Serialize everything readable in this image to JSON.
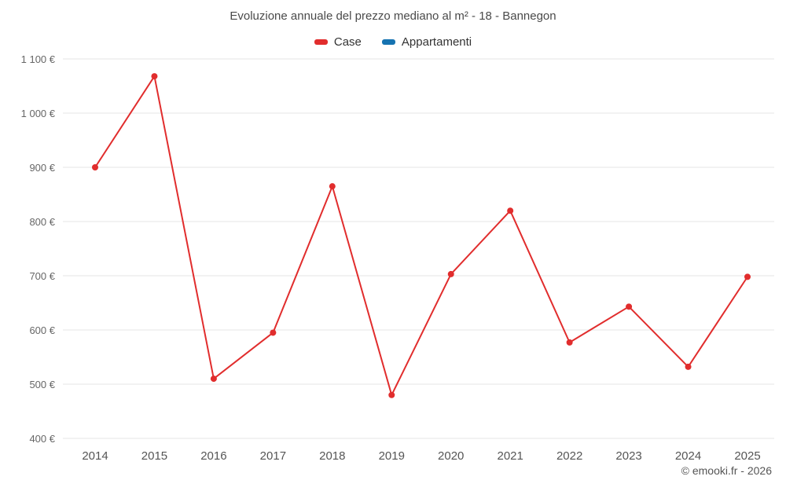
{
  "chart_data": {
    "type": "line",
    "title": "Evoluzione annuale del prezzo mediano al m² - 18 - Bannegon",
    "categories": [
      "2014",
      "2015",
      "2016",
      "2017",
      "2018",
      "2019",
      "2020",
      "2021",
      "2022",
      "2023",
      "2024",
      "2025"
    ],
    "series": [
      {
        "name": "Case",
        "color": "#e12d2d",
        "values": [
          900,
          1068,
          510,
          595,
          865,
          480,
          703,
          820,
          577,
          643,
          532,
          698
        ]
      },
      {
        "name": "Appartamenti",
        "color": "#1673b1",
        "values": []
      }
    ],
    "xlabel": "",
    "ylabel": "",
    "ylim": [
      400,
      1100
    ],
    "ytick_step": 100,
    "y_unit": "€",
    "grid": "horizontal",
    "legend_position": "top"
  },
  "footer": {
    "copyright": "© emooki.fr - 2026"
  }
}
